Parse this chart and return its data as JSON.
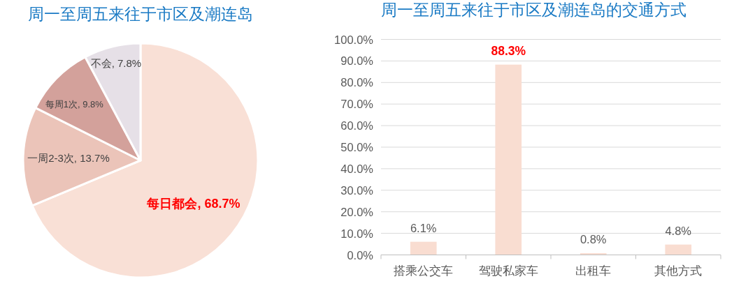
{
  "chart_data": [
    {
      "type": "pie",
      "title": "周一至周五来往于市区及潮连岛",
      "categories": [
        "每日都会",
        "一周2-3次",
        "每周1次",
        "不会"
      ],
      "values": [
        68.7,
        13.7,
        9.8,
        7.8
      ],
      "colors": [
        "#f9e0d6",
        "#ebc4b9",
        "#d3a19b",
        "#e6e0e7"
      ],
      "value_labels": [
        "68.7%",
        "13.7%",
        "9.8%",
        "7.8%"
      ]
    },
    {
      "type": "bar",
      "title": "周一至周五来往于市区及潮连岛的交通方式",
      "categories": [
        "搭乘公交车",
        "驾驶私家车",
        "出租车",
        "其他方式"
      ],
      "values": [
        6.1,
        88.3,
        0.8,
        4.8
      ],
      "color": "#f9ddd1",
      "value_labels": [
        "6.1%",
        "88.3%",
        "0.8%",
        "4.8%"
      ],
      "ylim": [
        0,
        100
      ],
      "yticks": [
        {
          "value": 0,
          "label": "0.0%"
        },
        {
          "value": 10,
          "label": "10.0%"
        },
        {
          "value": 20,
          "label": "20.0%"
        },
        {
          "value": 30,
          "label": "30.0%"
        },
        {
          "value": 40,
          "label": "40.0%"
        },
        {
          "value": 50,
          "label": "50.0%"
        },
        {
          "value": 60,
          "label": "60.0%"
        },
        {
          "value": 70,
          "label": "70.0%"
        },
        {
          "value": 80,
          "label": "80.0%"
        },
        {
          "value": 90,
          "label": "90.0%"
        },
        {
          "value": 100,
          "label": "100.0%"
        }
      ],
      "grid": "y"
    }
  ]
}
